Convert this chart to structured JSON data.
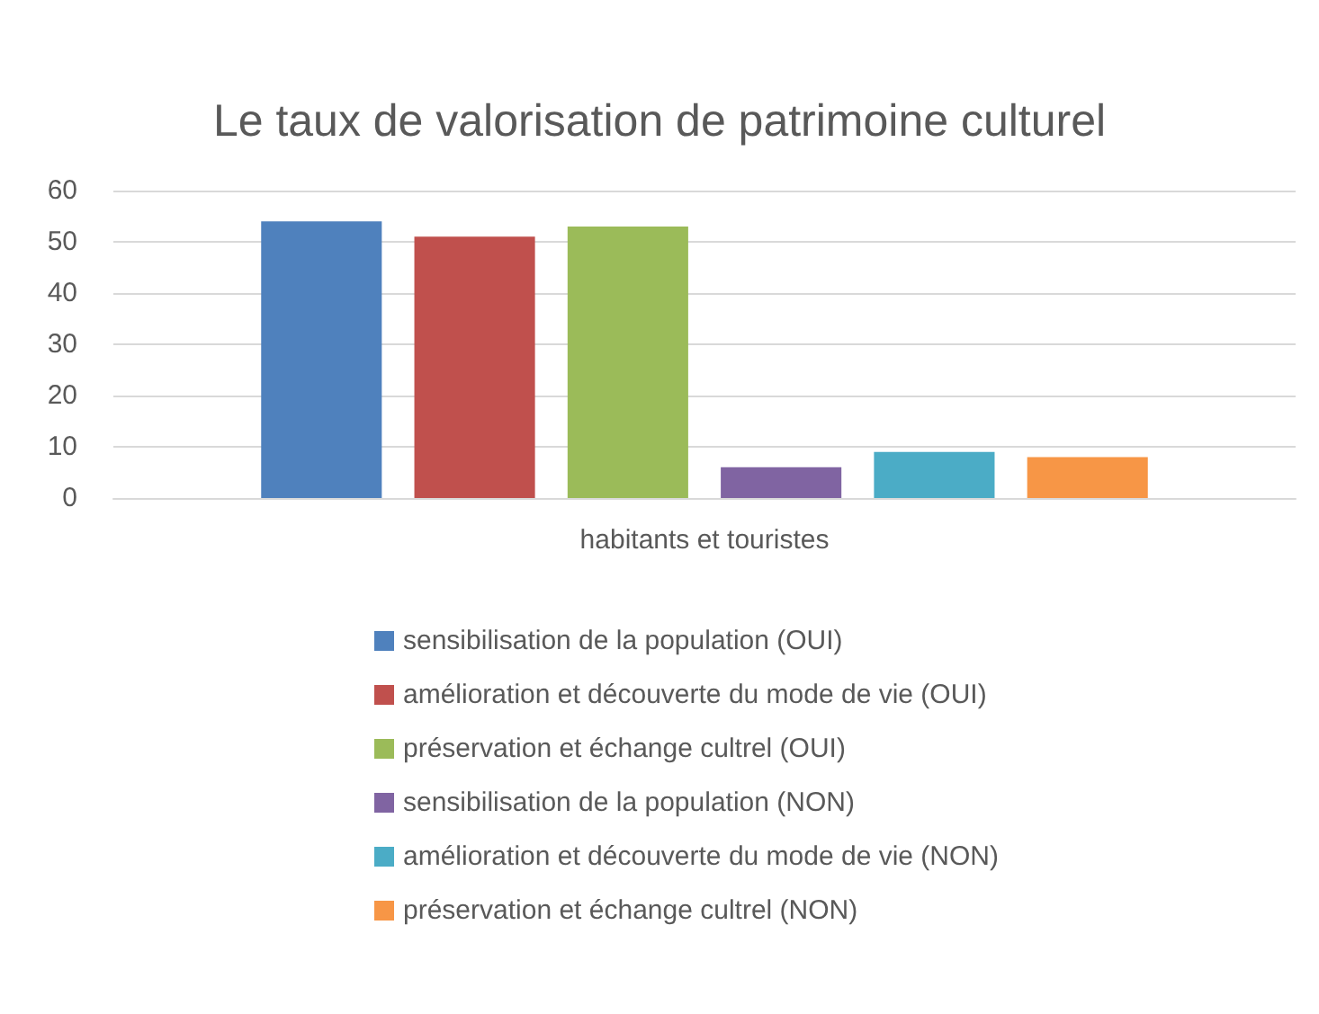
{
  "chart_data": {
    "type": "bar",
    "title": "Le taux de valorisation de patrimoine culturel",
    "categories": [
      "habitants et touristes"
    ],
    "series": [
      {
        "name": "sensibilisation de la population (OUI)",
        "color": "#4f81bd",
        "values": [
          54
        ]
      },
      {
        "name": "amélioration et découverte du mode de vie (OUI)",
        "color": "#c0504d",
        "values": [
          51
        ]
      },
      {
        "name": "préservation et échange cultrel (OUI)",
        "color": "#9bbb59",
        "values": [
          53
        ]
      },
      {
        "name": "sensibilisation de la population (NON)",
        "color": "#8064a2",
        "values": [
          6
        ]
      },
      {
        "name": "amélioration et découverte du mode de vie (NON)",
        "color": "#4bacc6",
        "values": [
          9
        ]
      },
      {
        "name": "préservation et échange cultrel (NON)",
        "color": "#f79646",
        "values": [
          8
        ]
      }
    ],
    "ylim": [
      0,
      60
    ],
    "yticks": [
      0,
      10,
      20,
      30,
      40,
      50,
      60
    ],
    "grid": "y",
    "legend": "bottom"
  }
}
